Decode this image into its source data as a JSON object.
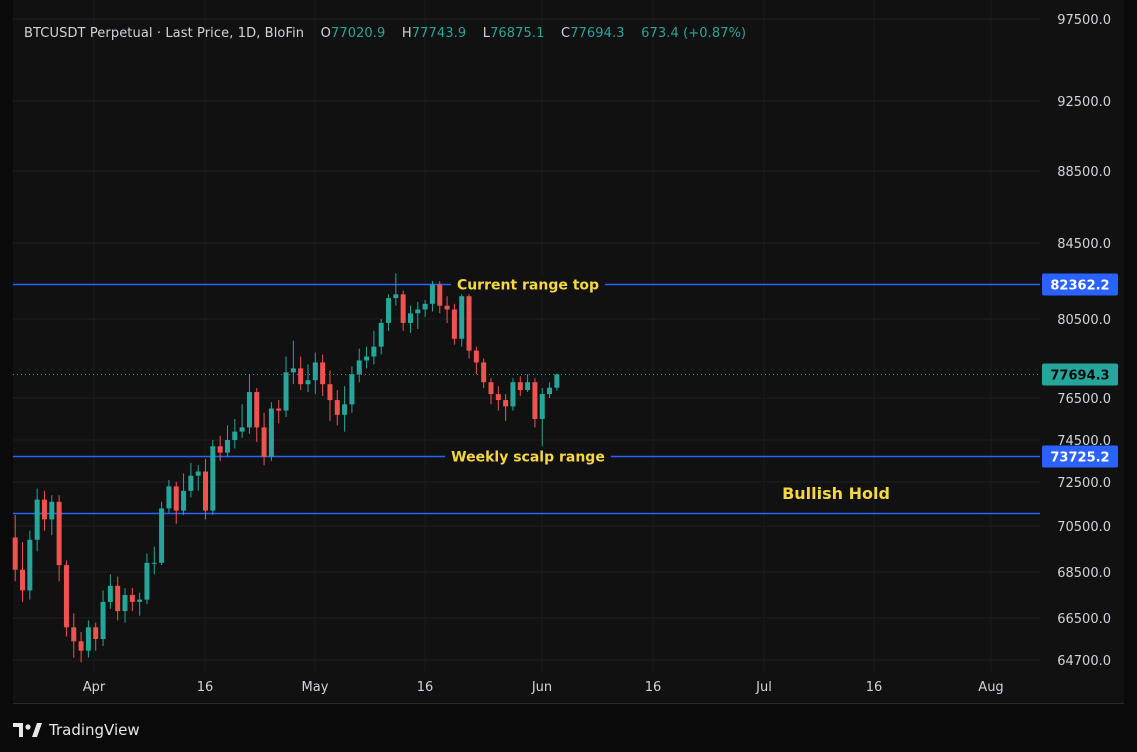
{
  "header": {
    "symbol": "BTCUSDT Perpetual",
    "sep": "·",
    "price_type": "Last Price",
    "interval": "1D",
    "exchange": "BloFin",
    "open_label": "O",
    "open": "77020.9",
    "high_label": "H",
    "high": "77743.9",
    "low_label": "L",
    "low": "76875.1",
    "close_label": "C",
    "close": "77694.3",
    "change": "673.4 (+0.87%)"
  },
  "footer": {
    "brand": "TradingView"
  },
  "colors": {
    "up": "#26a69a",
    "down": "#ef5350",
    "level": "#2962ff",
    "annotation": "#f5d742",
    "background": "#111111"
  },
  "chart_data": {
    "type": "candlestick",
    "title": "",
    "y_axis": {
      "ticks": [
        97500.0,
        92500.0,
        88500.0,
        84500.0,
        80500.0,
        76500.0,
        74500.0,
        72500.0,
        70500.0,
        68500.0,
        66500.0,
        64700.0
      ],
      "tick_labels": [
        "97500.0",
        "92500.0",
        "88500.0",
        "84500.0",
        "80500.0",
        "76500.0",
        "74500.0",
        "72500.0",
        "70500.0",
        "68500.0",
        "66500.0",
        "64700.0"
      ]
    },
    "x_axis": {
      "labels": [
        "Apr",
        "16",
        "May",
        "16",
        "Jun",
        "16",
        "Jul",
        "16",
        "Aug"
      ]
    },
    "current_price": {
      "value": 77694.3,
      "label": "77694.3"
    },
    "levels": [
      {
        "value": 82362.2,
        "label": "82362.2",
        "annotation": "Current range top"
      },
      {
        "value": 73725.2,
        "label": "73725.2",
        "annotation": "Weekly scalp range"
      },
      {
        "value": 71100.0,
        "label": "",
        "annotation": ""
      }
    ],
    "text_annotations": [
      {
        "text": "Bullish Hold",
        "date_index": 75,
        "price": 72000
      }
    ],
    "candles": [
      {
        "o": 70000,
        "h": 71000,
        "l": 68100,
        "c": 68600
      },
      {
        "o": 68600,
        "h": 69800,
        "l": 67200,
        "c": 67700
      },
      {
        "o": 67700,
        "h": 70300,
        "l": 67300,
        "c": 69900
      },
      {
        "o": 69900,
        "h": 72200,
        "l": 69400,
        "c": 71700
      },
      {
        "o": 71700,
        "h": 72100,
        "l": 70300,
        "c": 70800
      },
      {
        "o": 70800,
        "h": 71900,
        "l": 70100,
        "c": 71600
      },
      {
        "o": 71600,
        "h": 71900,
        "l": 68100,
        "c": 68800
      },
      {
        "o": 68800,
        "h": 69000,
        "l": 65700,
        "c": 66100
      },
      {
        "o": 66100,
        "h": 66700,
        "l": 64800,
        "c": 65500
      },
      {
        "o": 65500,
        "h": 65900,
        "l": 64600,
        "c": 65100
      },
      {
        "o": 65100,
        "h": 66400,
        "l": 64800,
        "c": 66100
      },
      {
        "o": 66100,
        "h": 66300,
        "l": 65100,
        "c": 65600
      },
      {
        "o": 65600,
        "h": 67700,
        "l": 65300,
        "c": 67200
      },
      {
        "o": 67200,
        "h": 68400,
        "l": 66900,
        "c": 67900
      },
      {
        "o": 67900,
        "h": 68300,
        "l": 66400,
        "c": 66800
      },
      {
        "o": 66800,
        "h": 67800,
        "l": 66300,
        "c": 67500
      },
      {
        "o": 67500,
        "h": 67800,
        "l": 66800,
        "c": 67200
      },
      {
        "o": 67200,
        "h": 67600,
        "l": 66600,
        "c": 67300
      },
      {
        "o": 67300,
        "h": 69300,
        "l": 67100,
        "c": 68900
      },
      {
        "o": 68900,
        "h": 69600,
        "l": 68400,
        "c": 68900
      },
      {
        "o": 68900,
        "h": 71600,
        "l": 68800,
        "c": 71300
      },
      {
        "o": 71300,
        "h": 72600,
        "l": 71100,
        "c": 72300
      },
      {
        "o": 72300,
        "h": 72500,
        "l": 70600,
        "c": 71200
      },
      {
        "o": 71200,
        "h": 72900,
        "l": 71000,
        "c": 72100
      },
      {
        "o": 72100,
        "h": 73400,
        "l": 71800,
        "c": 72800
      },
      {
        "o": 72800,
        "h": 73300,
        "l": 72100,
        "c": 73000
      },
      {
        "o": 73000,
        "h": 73600,
        "l": 70800,
        "c": 71200
      },
      {
        "o": 71200,
        "h": 74500,
        "l": 71000,
        "c": 74200
      },
      {
        "o": 74200,
        "h": 74700,
        "l": 73500,
        "c": 73900
      },
      {
        "o": 73900,
        "h": 75200,
        "l": 73700,
        "c": 74500
      },
      {
        "o": 74500,
        "h": 75500,
        "l": 74100,
        "c": 74900
      },
      {
        "o": 74900,
        "h": 76200,
        "l": 74600,
        "c": 75100
      },
      {
        "o": 75100,
        "h": 77700,
        "l": 74800,
        "c": 76800
      },
      {
        "o": 76800,
        "h": 77000,
        "l": 74400,
        "c": 75100
      },
      {
        "o": 75100,
        "h": 75800,
        "l": 73300,
        "c": 73700
      },
      {
        "o": 73700,
        "h": 76300,
        "l": 73500,
        "c": 76000
      },
      {
        "o": 76000,
        "h": 76400,
        "l": 75300,
        "c": 75900
      },
      {
        "o": 75900,
        "h": 78600,
        "l": 75600,
        "c": 77800
      },
      {
        "o": 77800,
        "h": 79400,
        "l": 77200,
        "c": 78000
      },
      {
        "o": 78000,
        "h": 78600,
        "l": 76900,
        "c": 77200
      },
      {
        "o": 77200,
        "h": 78200,
        "l": 76800,
        "c": 77400
      },
      {
        "o": 77400,
        "h": 78800,
        "l": 76700,
        "c": 78300
      },
      {
        "o": 78300,
        "h": 78700,
        "l": 76600,
        "c": 77200
      },
      {
        "o": 77200,
        "h": 77900,
        "l": 75400,
        "c": 76400
      },
      {
        "o": 76400,
        "h": 76900,
        "l": 75200,
        "c": 75700
      },
      {
        "o": 75700,
        "h": 77100,
        "l": 74900,
        "c": 76200
      },
      {
        "o": 76200,
        "h": 78100,
        "l": 75800,
        "c": 77700
      },
      {
        "o": 77700,
        "h": 79000,
        "l": 77300,
        "c": 78400
      },
      {
        "o": 78400,
        "h": 79100,
        "l": 78000,
        "c": 78600
      },
      {
        "o": 78600,
        "h": 79900,
        "l": 78200,
        "c": 79100
      },
      {
        "o": 79100,
        "h": 80500,
        "l": 78700,
        "c": 80300
      },
      {
        "o": 80300,
        "h": 81800,
        "l": 79900,
        "c": 81600
      },
      {
        "o": 81600,
        "h": 82900,
        "l": 81200,
        "c": 81800
      },
      {
        "o": 81800,
        "h": 82000,
        "l": 79900,
        "c": 80300
      },
      {
        "o": 80300,
        "h": 81200,
        "l": 79800,
        "c": 80800
      },
      {
        "o": 80800,
        "h": 81400,
        "l": 80000,
        "c": 81000
      },
      {
        "o": 81000,
        "h": 81500,
        "l": 80600,
        "c": 81300
      },
      {
        "o": 81300,
        "h": 82500,
        "l": 80900,
        "c": 82300
      },
      {
        "o": 82300,
        "h": 82500,
        "l": 80800,
        "c": 81200
      },
      {
        "o": 81200,
        "h": 81700,
        "l": 80300,
        "c": 81000
      },
      {
        "o": 81000,
        "h": 81300,
        "l": 79200,
        "c": 79500
      },
      {
        "o": 79500,
        "h": 81800,
        "l": 79100,
        "c": 81700
      },
      {
        "o": 81700,
        "h": 81800,
        "l": 78500,
        "c": 78900
      },
      {
        "o": 78900,
        "h": 79100,
        "l": 77700,
        "c": 78300
      },
      {
        "o": 78300,
        "h": 78500,
        "l": 77000,
        "c": 77300
      },
      {
        "o": 77300,
        "h": 77500,
        "l": 76200,
        "c": 76700
      },
      {
        "o": 76700,
        "h": 77100,
        "l": 75900,
        "c": 76400
      },
      {
        "o": 76400,
        "h": 76700,
        "l": 75400,
        "c": 76100
      },
      {
        "o": 76100,
        "h": 77500,
        "l": 75900,
        "c": 77300
      },
      {
        "o": 77300,
        "h": 77600,
        "l": 76600,
        "c": 76900
      },
      {
        "o": 76900,
        "h": 77700,
        "l": 76800,
        "c": 77300
      },
      {
        "o": 77300,
        "h": 77500,
        "l": 75100,
        "c": 75500
      },
      {
        "o": 75500,
        "h": 77000,
        "l": 74200,
        "c": 76700
      },
      {
        "o": 76700,
        "h": 77300,
        "l": 76500,
        "c": 77020.9
      },
      {
        "o": 77020.9,
        "h": 77743.9,
        "l": 76875.1,
        "c": 77694.3
      }
    ]
  }
}
